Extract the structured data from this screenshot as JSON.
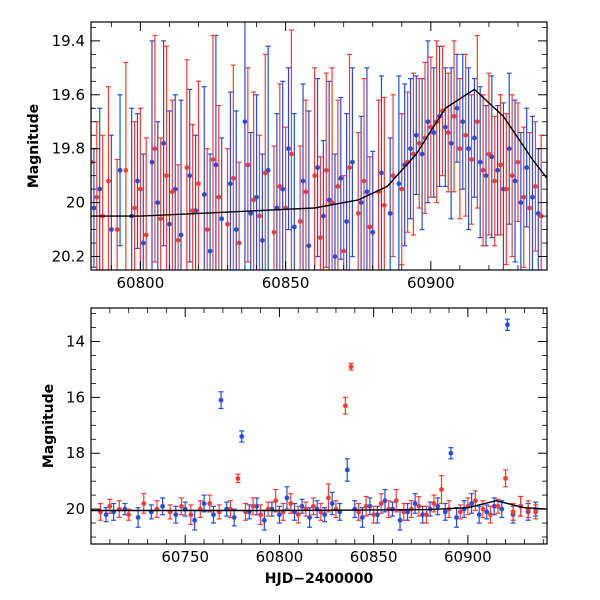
{
  "chart_data": [
    {
      "type": "scatter",
      "panel": "top",
      "xlabel": "",
      "ylabel": "Magnitude",
      "xlim": [
        60783,
        60940
      ],
      "ylim": [
        20.25,
        19.33
      ],
      "y_inverted": true,
      "x_ticks": [
        60800,
        60850,
        60900
      ],
      "y_ticks": [
        19.4,
        19.6,
        19.8,
        20,
        20.2
      ],
      "x_tick_labels": [
        "60800",
        "60850",
        "60900"
      ],
      "y_tick_labels": [
        "19.4",
        "19.6",
        "19.8",
        "20",
        "20.2"
      ],
      "grid": false,
      "series": [
        {
          "color": "#1f4fe8",
          "marker": "circle",
          "errorbars": true,
          "x": [
            60784,
            60786,
            60790,
            60793,
            60797,
            60799,
            60801,
            60804,
            60806,
            60808,
            60810,
            60812,
            60814,
            60817,
            60819,
            60822,
            60824,
            60826,
            60828,
            60831,
            60833,
            60836,
            60838,
            60840,
            60842,
            60844,
            60847,
            60849,
            60851,
            60853,
            60856,
            60858,
            60861,
            60863,
            60865,
            60867,
            60869,
            60871,
            60873,
            60876,
            60878,
            60880,
            60883,
            60886,
            60889,
            60891,
            60893,
            60895,
            60897,
            60899,
            60901,
            60903,
            60905,
            60907,
            60909,
            60911,
            60913,
            60915,
            60917,
            60919,
            60921,
            60923,
            60925,
            60927,
            60929,
            60931,
            60933,
            60935,
            60937
          ],
          "y": [
            20.02,
            19.95,
            20.1,
            19.88,
            20.05,
            19.92,
            20.15,
            19.85,
            20.0,
            19.78,
            20.08,
            19.95,
            20.12,
            19.9,
            20.03,
            19.97,
            20.18,
            19.86,
            20.06,
            19.93,
            20.1,
            19.7,
            20.04,
            19.98,
            20.14,
            19.88,
            20.02,
            19.95,
            19.8,
            20.09,
            19.92,
            20.16,
            19.87,
            20.05,
            19.99,
            20.2,
            19.91,
            20.07,
            19.85,
            20.0,
            19.96,
            20.11,
            19.89,
            20.04,
            19.93,
            19.86,
            19.8,
            19.75,
            19.82,
            19.7,
            19.74,
            19.68,
            19.72,
            19.78,
            19.65,
            19.7,
            19.8,
            19.76,
            19.85,
            19.9,
            19.83,
            19.88,
            19.95,
            19.8,
            19.92,
            20.0,
            19.87,
            19.98,
            20.04
          ],
          "yerr": [
            0.22,
            0.3,
            0.35,
            0.28,
            0.4,
            0.25,
            0.33,
            0.45,
            0.3,
            0.38,
            0.42,
            0.35,
            0.5,
            0.32,
            0.28,
            0.4,
            0.36,
            0.48,
            0.3,
            0.34,
            0.44,
            0.55,
            0.3,
            0.38,
            0.32,
            0.46,
            0.35,
            0.4,
            0.3,
            0.42,
            0.36,
            0.5,
            0.33,
            0.28,
            0.44,
            0.38,
            0.3,
            0.4,
            0.35,
            0.32,
            0.46,
            0.3,
            0.36,
            0.28,
            0.4,
            0.3,
            0.26,
            0.22,
            0.28,
            0.3,
            0.24,
            0.26,
            0.22,
            0.28,
            0.2,
            0.25,
            0.3,
            0.22,
            0.28,
            0.26,
            0.3,
            0.24,
            0.32,
            0.28,
            0.3,
            0.26,
            0.22,
            0.3,
            0.24
          ]
        },
        {
          "color": "#ff3b30",
          "marker": "circle",
          "errorbars": true,
          "x": [
            60783,
            60785,
            60787,
            60789,
            60792,
            60795,
            60798,
            60800,
            60802,
            60805,
            60807,
            60809,
            60811,
            60813,
            60816,
            60818,
            60820,
            60823,
            60825,
            60827,
            60830,
            60832,
            60834,
            60837,
            60839,
            60841,
            60843,
            60846,
            60848,
            60850,
            60852,
            60855,
            60857,
            60860,
            60862,
            60864,
            60866,
            60868,
            60870,
            60872,
            60875,
            60877,
            60879,
            60882,
            60884,
            60887,
            60890,
            60892,
            60894,
            60896,
            60898,
            60900,
            60902,
            60904,
            60906,
            60908,
            60910,
            60912,
            60914,
            60916,
            60918,
            60920,
            60922,
            60924,
            60926,
            60928,
            60930,
            60932,
            60934,
            60936,
            60938
          ],
          "y": [
            19.85,
            19.98,
            20.05,
            19.92,
            20.1,
            19.88,
            20.02,
            19.95,
            20.12,
            19.8,
            20.06,
            19.9,
            19.96,
            20.14,
            19.87,
            20.03,
            19.93,
            20.1,
            19.84,
            19.98,
            20.08,
            19.91,
            20.15,
            19.86,
            19.99,
            20.05,
            19.89,
            20.11,
            19.94,
            20.02,
            19.82,
            20.07,
            19.96,
            19.9,
            20.13,
            19.88,
            20.0,
            19.94,
            20.18,
            19.87,
            20.04,
            19.92,
            20.09,
            19.96,
            20.01,
            19.9,
            19.95,
            19.85,
            19.82,
            19.78,
            19.76,
            19.72,
            19.7,
            19.66,
            19.74,
            19.68,
            19.8,
            19.75,
            19.84,
            19.7,
            19.88,
            19.82,
            19.92,
            19.86,
            19.95,
            19.9,
            19.85,
            19.98,
            20.02,
            19.94,
            20.05
          ],
          "yerr": [
            0.2,
            0.28,
            0.3,
            0.35,
            0.26,
            0.4,
            0.32,
            0.3,
            0.36,
            0.42,
            0.3,
            0.48,
            0.34,
            0.28,
            0.4,
            0.32,
            0.38,
            0.3,
            0.46,
            0.34,
            0.28,
            0.42,
            0.3,
            0.36,
            0.4,
            0.3,
            0.44,
            0.32,
            0.38,
            0.3,
            0.46,
            0.28,
            0.34,
            0.4,
            0.3,
            0.36,
            0.5,
            0.32,
            0.28,
            0.42,
            0.3,
            0.38,
            0.26,
            0.34,
            0.4,
            0.3,
            0.28,
            0.26,
            0.3,
            0.24,
            0.28,
            0.26,
            0.3,
            0.24,
            0.22,
            0.28,
            0.26,
            0.3,
            0.24,
            0.32,
            0.28,
            0.3,
            0.24,
            0.26,
            0.28,
            0.3,
            0.22,
            0.26,
            0.28,
            0.24,
            0.3
          ]
        }
      ],
      "model_curve": {
        "color": "#000000",
        "x": [
          60783,
          60800,
          60820,
          60840,
          60860,
          60875,
          60885,
          60895,
          60905,
          60915,
          60925,
          60935,
          60940
        ],
        "y": [
          20.05,
          20.05,
          20.04,
          20.03,
          20.02,
          19.99,
          19.94,
          19.82,
          19.65,
          19.58,
          19.68,
          19.84,
          19.91
        ]
      }
    },
    {
      "type": "scatter",
      "panel": "bottom",
      "xlabel": "HJD−2400000",
      "ylabel": "Magnitude",
      "xlim": [
        60700,
        60942
      ],
      "ylim": [
        21.25,
        12.8
      ],
      "y_inverted": true,
      "x_ticks": [
        60750,
        60800,
        60850,
        60900
      ],
      "y_ticks": [
        14,
        16,
        18,
        20
      ],
      "x_tick_labels": [
        "60750",
        "60800",
        "60850",
        "60900"
      ],
      "y_tick_labels": [
        "14",
        "16",
        "18",
        "20"
      ],
      "grid": false,
      "series": [
        {
          "color": "#1f4fe8",
          "marker": "circle",
          "errorbars": true,
          "x": [
            60708,
            60712,
            60718,
            60725,
            60732,
            60738,
            60745,
            60750,
            60755,
            60760,
            60765,
            60769,
            60772,
            60776,
            60780,
            60784,
            60788,
            60792,
            60796,
            60800,
            60804,
            60808,
            60812,
            60816,
            60820,
            60824,
            60828,
            60832,
            60836,
            60840,
            60844,
            60848,
            60852,
            60856,
            60860,
            60864,
            60868,
            60872,
            60876,
            60880,
            60884,
            60888,
            60891,
            60894,
            60898,
            60902,
            60906,
            60910,
            60914,
            60918,
            60921,
            60924,
            60928,
            60932,
            60936
          ],
          "y": [
            20.2,
            20.1,
            20.0,
            20.3,
            20.1,
            19.9,
            20.2,
            20.0,
            20.4,
            19.8,
            20.2,
            16.1,
            20.0,
            20.3,
            17.4,
            20.1,
            19.9,
            20.4,
            20.0,
            20.2,
            19.6,
            20.1,
            19.9,
            20.3,
            20.0,
            20.2,
            19.8,
            20.1,
            18.6,
            20.0,
            20.3,
            19.9,
            20.2,
            19.7,
            20.0,
            20.4,
            20.1,
            19.8,
            20.2,
            20.0,
            19.9,
            20.1,
            18.0,
            20.3,
            20.0,
            19.8,
            20.2,
            20.1,
            19.9,
            20.0,
            13.4,
            20.2,
            19.9,
            20.1,
            20.0
          ],
          "yerr": [
            0.25,
            0.3,
            0.2,
            0.35,
            0.25,
            0.3,
            0.3,
            0.25,
            0.35,
            0.3,
            0.3,
            0.3,
            0.25,
            0.3,
            0.2,
            0.25,
            0.3,
            0.35,
            0.25,
            0.3,
            0.4,
            0.3,
            0.25,
            0.35,
            0.3,
            0.25,
            0.4,
            0.3,
            0.4,
            0.3,
            0.35,
            0.3,
            0.3,
            0.4,
            0.25,
            0.35,
            0.3,
            0.35,
            0.3,
            0.25,
            0.3,
            0.3,
            0.2,
            0.35,
            0.3,
            0.35,
            0.3,
            0.25,
            0.3,
            0.3,
            0.2,
            0.3,
            0.35,
            0.3,
            0.25
          ]
        },
        {
          "color": "#ff3b30",
          "marker": "circle",
          "errorbars": true,
          "x": [
            60705,
            60710,
            60715,
            60720,
            60728,
            60735,
            60742,
            60748,
            60753,
            60758,
            60763,
            60768,
            60774,
            60778,
            60782,
            60786,
            60790,
            60794,
            60798,
            60802,
            60806,
            60810,
            60814,
            60818,
            60822,
            60826,
            60830,
            60835,
            60838,
            60842,
            60846,
            60850,
            60854,
            60858,
            60862,
            60866,
            60870,
            60874,
            60878,
            60882,
            60886,
            60890,
            60896,
            60900,
            60904,
            60908,
            60912,
            60916,
            60920,
            60924,
            60928,
            60932,
            60936
          ],
          "y": [
            20.1,
            19.9,
            20.0,
            20.2,
            19.8,
            20.0,
            20.1,
            19.9,
            20.2,
            20.0,
            19.8,
            20.1,
            20.0,
            18.9,
            20.1,
            19.9,
            20.2,
            20.0,
            19.7,
            20.1,
            19.8,
            20.2,
            20.0,
            19.9,
            20.1,
            19.6,
            20.0,
            16.3,
            14.9,
            20.1,
            19.9,
            20.2,
            19.8,
            20.0,
            19.7,
            20.1,
            20.0,
            19.9,
            20.2,
            19.8,
            19.3,
            20.0,
            20.1,
            19.9,
            19.7,
            20.0,
            20.2,
            19.9,
            18.9,
            20.1,
            19.9,
            20.0,
            20.1
          ],
          "yerr": [
            0.3,
            0.25,
            0.3,
            0.2,
            0.35,
            0.3,
            0.25,
            0.3,
            0.35,
            0.3,
            0.3,
            0.25,
            0.3,
            0.15,
            0.3,
            0.3,
            0.35,
            0.25,
            0.4,
            0.3,
            0.35,
            0.3,
            0.25,
            0.3,
            0.3,
            0.5,
            0.3,
            0.3,
            0.12,
            0.3,
            0.35,
            0.3,
            0.35,
            0.3,
            0.4,
            0.3,
            0.3,
            0.35,
            0.3,
            0.3,
            0.5,
            0.3,
            0.25,
            0.3,
            0.35,
            0.3,
            0.3,
            0.25,
            0.3,
            0.3,
            0.35,
            0.3,
            0.25
          ]
        }
      ],
      "model_curve": {
        "color": "#000000",
        "x": [
          60700,
          60800,
          60880,
          60900,
          60915,
          60930,
          60942
        ],
        "y": [
          20.05,
          20.05,
          20.02,
          19.95,
          19.7,
          19.95,
          20.0
        ]
      }
    }
  ]
}
